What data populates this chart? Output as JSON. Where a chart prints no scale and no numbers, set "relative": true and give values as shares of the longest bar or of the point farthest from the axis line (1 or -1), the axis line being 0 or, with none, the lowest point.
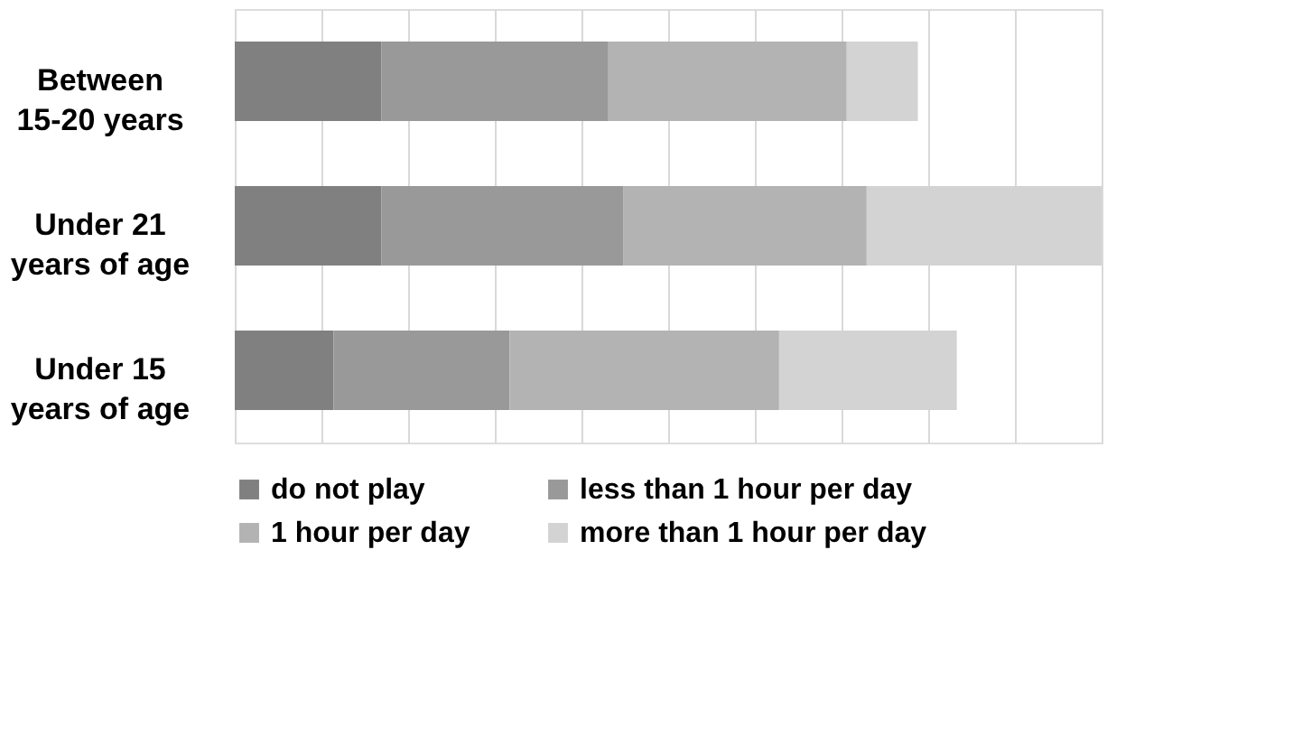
{
  "chart_data": {
    "type": "bar",
    "orientation": "horizontal",
    "stacked": true,
    "relative": true,
    "grid": "x",
    "legend": "bottom",
    "categories": [
      "Between 15-20 years",
      "Under 21 years of age",
      "Under 15 years of age"
    ],
    "series": [
      {
        "name": "do not play",
        "color": "#808080",
        "values": [
          0.169,
          0.169,
          0.114
        ]
      },
      {
        "name": "less than 1 hour per day",
        "color": "#999999",
        "values": [
          0.262,
          0.279,
          0.203
        ]
      },
      {
        "name": "1 hour per day",
        "color": "#b3b3b3",
        "values": [
          0.275,
          0.281,
          0.311
        ]
      },
      {
        "name": "more than 1 hour per day",
        "color": "#d3d3d3",
        "values": [
          0.082,
          0.271,
          0.205
        ]
      }
    ]
  }
}
